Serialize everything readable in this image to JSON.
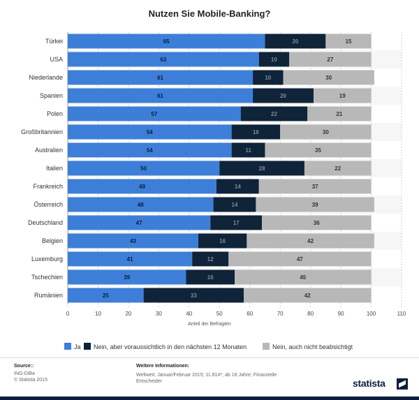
{
  "title": "Nutzen Sie Mobile-Banking?",
  "chart_data": {
    "type": "bar",
    "orientation": "horizontal",
    "stacked": true,
    "categories": [
      "Türkei",
      "USA",
      "Niederlande",
      "Spanien",
      "Polen",
      "Großbritannien",
      "Australien",
      "Italien",
      "Frankreich",
      "Österreich",
      "Deutschland",
      "Belgien",
      "Luxemburg",
      "Tschechien",
      "Rumänien"
    ],
    "series": [
      {
        "name": "Ja",
        "color": "#3d7fd8",
        "label_color": "#0c1e3c",
        "values": [
          65,
          63,
          61,
          61,
          57,
          54,
          54,
          50,
          49,
          48,
          47,
          43,
          41,
          39,
          25
        ]
      },
      {
        "name": "Nein, aber voraussichtlich in den nächsten 12 Monaten",
        "color": "#0f2339",
        "label_color": "#7f8b98",
        "values": [
          20,
          10,
          10,
          20,
          22,
          16,
          11,
          28,
          14,
          14,
          17,
          16,
          12,
          16,
          33
        ]
      },
      {
        "name": "Nein, auch nicht beabsichtigt",
        "color": "#b8b8b8",
        "label_color": "#333333",
        "values": [
          15,
          27,
          30,
          19,
          21,
          30,
          35,
          22,
          37,
          39,
          36,
          42,
          47,
          45,
          42
        ]
      }
    ],
    "xlabel": "Anteil der Befragten",
    "xlim": [
      0,
      110
    ],
    "xticks": [
      "0",
      "10",
      "20",
      "30",
      "40",
      "50",
      "60",
      "70",
      "80",
      "90",
      "100",
      "110"
    ],
    "grid": true,
    "legend": "bottom"
  },
  "legend_labels": [
    "Ja",
    "Nein, aber voraussichtlich in den nächsten 12 Monaten",
    "Nein, auch nicht beabsichtigt"
  ],
  "footer": {
    "source_head": "Source::",
    "source_lines": [
      "ING-DiBa",
      "© Statista 2015"
    ],
    "info_head": "Weitere Informationen:",
    "info_text": "Weltweit; Januar/Februar 2015; 11.814*; ab 18 Jahre; Finanzielle Entscheider",
    "logo": "statista"
  }
}
